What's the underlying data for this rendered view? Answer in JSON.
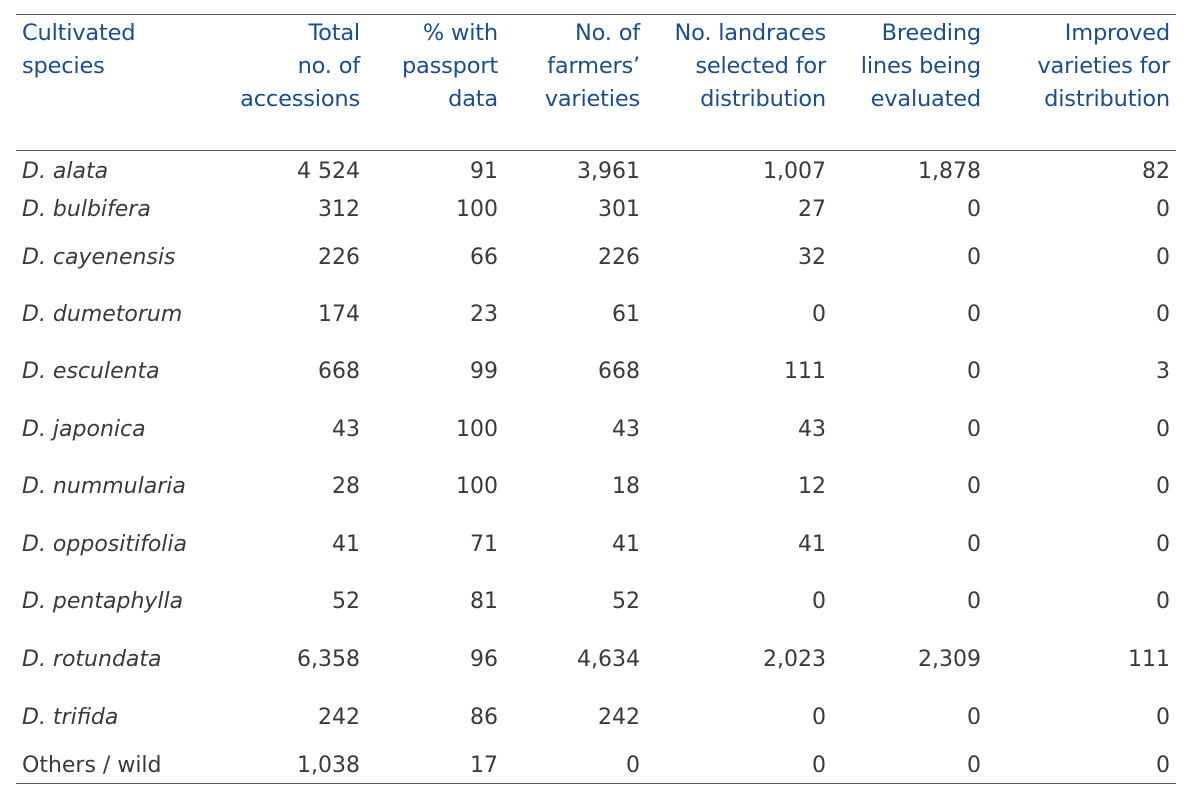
{
  "table": {
    "headers": [
      [
        "Cultivated",
        "species"
      ],
      [
        "Total",
        "no. of",
        "accessions"
      ],
      [
        "% with",
        "passport",
        "data"
      ],
      [
        "No. of",
        "farmers’",
        "varieties"
      ],
      [
        "No. landraces",
        "selected for",
        "distribution"
      ],
      [
        "Breeding",
        "lines being",
        "evaluated"
      ],
      [
        "Improved",
        "varieties for",
        "distribution"
      ]
    ],
    "rows": [
      {
        "species": "D. alata",
        "italic": true,
        "total": "4 524",
        "passport": "91",
        "farmers": "3,961",
        "landraces": "1,007",
        "breeding": "1,878",
        "improved": "82"
      },
      {
        "species": "D. bulbifera",
        "italic": true,
        "total": "312",
        "passport": "100",
        "farmers": "301",
        "landraces": "27",
        "breeding": "0",
        "improved": "0"
      },
      {
        "species": "D. cayenensis",
        "italic": true,
        "total": "226",
        "passport": "66",
        "farmers": "226",
        "landraces": "32",
        "breeding": "0",
        "improved": "0"
      },
      {
        "species": "D. dumetorum",
        "italic": true,
        "total": "174",
        "passport": "23",
        "farmers": "61",
        "landraces": "0",
        "breeding": "0",
        "improved": "0"
      },
      {
        "species": "D. esculenta",
        "italic": true,
        "total": "668",
        "passport": "99",
        "farmers": "668",
        "landraces": "111",
        "breeding": "0",
        "improved": "3"
      },
      {
        "species": "D. japonica",
        "italic": true,
        "total": "43",
        "passport": "100",
        "farmers": "43",
        "landraces": "43",
        "breeding": "0",
        "improved": "0"
      },
      {
        "species": "D. nummularia",
        "italic": true,
        "total": "28",
        "passport": "100",
        "farmers": "18",
        "landraces": "12",
        "breeding": "0",
        "improved": "0"
      },
      {
        "species": "D. oppositifolia",
        "italic": true,
        "total": "41",
        "passport": "71",
        "farmers": "41",
        "landraces": "41",
        "breeding": "0",
        "improved": "0"
      },
      {
        "species": "D. pentaphylla",
        "italic": true,
        "total": "52",
        "passport": "81",
        "farmers": "52",
        "landraces": "0",
        "breeding": "0",
        "improved": "0"
      },
      {
        "species": "D. rotundata",
        "italic": true,
        "total": "6,358",
        "passport": "96",
        "farmers": "4,634",
        "landraces": "2,023",
        "breeding": "2,309",
        "improved": "111"
      },
      {
        "species": "D. trifida",
        "italic": true,
        "total": "242",
        "passport": "86",
        "farmers": "242",
        "landraces": "0",
        "breeding": "0",
        "improved": "0"
      },
      {
        "species": "Others / wild",
        "italic": false,
        "total": "1,038",
        "passport": "17",
        "farmers": "0",
        "landraces": "0",
        "breeding": "0",
        "improved": "0"
      }
    ],
    "colors": {
      "header_text": "#1a4e93",
      "body_text": "#3a3a3a",
      "rule": "#555555"
    }
  }
}
